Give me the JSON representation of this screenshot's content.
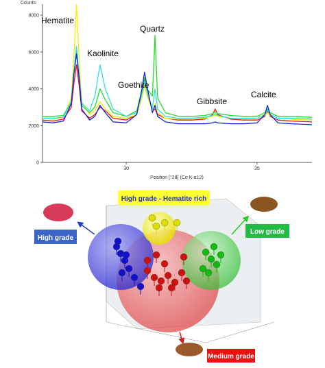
{
  "chart_data": {
    "type": "line",
    "y_label": "Counts",
    "x_label": "Position [°2θ] (Co K-α12)",
    "x": [
      26.8,
      27.2,
      27.6,
      27.9,
      28.0,
      28.1,
      28.2,
      28.3,
      28.6,
      28.8,
      29.0,
      29.2,
      29.5,
      30.0,
      30.4,
      30.6,
      30.7,
      30.8,
      31.0,
      31.1,
      31.2,
      31.5,
      32.0,
      32.5,
      33.0,
      33.3,
      33.4,
      33.5,
      34.0,
      34.5,
      35.0,
      35.3,
      35.4,
      35.5,
      35.8,
      36.3,
      37.1
    ],
    "series": [
      {
        "color": "#ee1111",
        "values": [
          2300,
          2250,
          2350,
          3000,
          4300,
          5300,
          4200,
          2800,
          2400,
          2600,
          3000,
          2800,
          2400,
          2300,
          2600,
          3700,
          4500,
          3800,
          2800,
          2900,
          2600,
          2400,
          2300,
          2300,
          2350,
          2600,
          2900,
          2600,
          2350,
          2300,
          2300,
          2500,
          2800,
          2500,
          2300,
          2250,
          2200
        ]
      },
      {
        "color": "#f0f000",
        "values": [
          2400,
          2350,
          2450,
          3500,
          5800,
          8600,
          5600,
          3300,
          2600,
          2800,
          3300,
          2900,
          2500,
          2400,
          2600,
          3500,
          4200,
          3600,
          2800,
          3200,
          2700,
          2400,
          2350,
          2350,
          2400,
          2500,
          2600,
          2500,
          2400,
          2350,
          2400,
          2550,
          2700,
          2550,
          2400,
          2350,
          2300
        ]
      },
      {
        "color": "#22dd22",
        "values": [
          2500,
          2500,
          2550,
          3300,
          4800,
          6200,
          4700,
          3100,
          2700,
          3000,
          4000,
          3400,
          2700,
          2500,
          2800,
          3900,
          4600,
          4000,
          3600,
          6900,
          3500,
          2700,
          2500,
          2500,
          2550,
          2650,
          2750,
          2650,
          2550,
          2500,
          2500,
          2700,
          2900,
          2700,
          2500,
          2500,
          2450
        ]
      },
      {
        "color": "#33dddd",
        "values": [
          2400,
          2400,
          2450,
          3300,
          5000,
          6300,
          4800,
          3200,
          2800,
          3600,
          5300,
          4000,
          2900,
          2500,
          2700,
          3700,
          4400,
          3800,
          2900,
          4000,
          2900,
          2500,
          2400,
          2400,
          2450,
          2550,
          2650,
          2550,
          2400,
          2400,
          2400,
          2600,
          2850,
          2600,
          2400,
          2400,
          2350
        ]
      },
      {
        "color": "#1122dd",
        "values": [
          2200,
          2150,
          2250,
          3200,
          4800,
          5900,
          4600,
          2900,
          2300,
          2500,
          3100,
          2700,
          2200,
          2150,
          2600,
          4000,
          4900,
          4100,
          2700,
          3100,
          2500,
          2200,
          2100,
          2100,
          2100,
          2150,
          2200,
          2150,
          2100,
          2100,
          2150,
          2600,
          3100,
          2600,
          2150,
          2100,
          2050
        ]
      }
    ],
    "annotations": [
      "Hematite",
      "Kaolinite",
      "Goethite",
      "Quartz",
      "Gibbsite",
      "Calcite"
    ],
    "xlim": [
      26.8,
      37.1
    ],
    "ylim": [
      0,
      8600
    ],
    "xticks": [
      30,
      35
    ],
    "yticks": [
      0,
      2000,
      4000,
      6000,
      8000
    ]
  },
  "diagram": {
    "title": "High grade - Hematite rich",
    "labels": [
      "High grade",
      "Low grade",
      "Medium grade"
    ]
  }
}
